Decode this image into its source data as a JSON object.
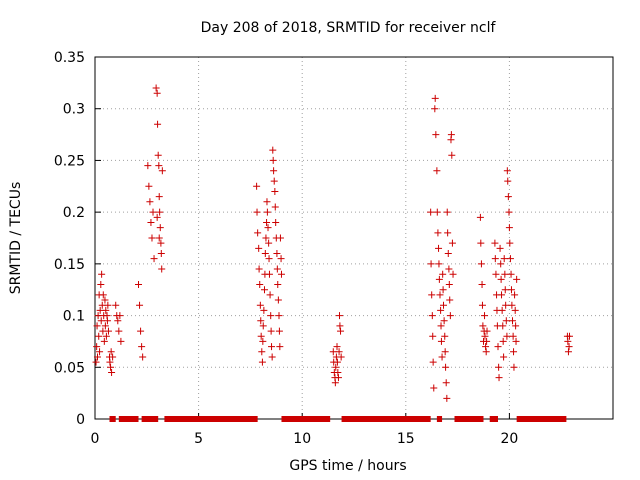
{
  "chart_data": {
    "type": "scatter",
    "title": "Day 208 of 2018, SRMTID for receiver nclf",
    "xlabel": "GPS time / hours",
    "ylabel": "SRMTID / TECUs",
    "xlim": [
      0,
      25
    ],
    "ylim": [
      0,
      0.35
    ],
    "xticks": [
      0,
      5,
      10,
      15,
      20
    ],
    "yticks": [
      0,
      0.05,
      0.1,
      0.15,
      0.2,
      0.25,
      0.3,
      0.35
    ],
    "xtick_labels": [
      "0",
      "5",
      "10",
      "15",
      "20"
    ],
    "ytick_labels": [
      "0",
      "0.05",
      "0.1",
      "0.15",
      "0.2",
      "0.25",
      "0.3",
      "0.35"
    ],
    "grid": true,
    "marker": "+",
    "marker_color": "#cc0000",
    "grid_color": "#a0a0a0",
    "series": [
      {
        "name": "SRMTID",
        "points": [
          [
            0.05,
            0.055
          ],
          [
            0.08,
            0.07
          ],
          [
            0.1,
            0.09
          ],
          [
            0.12,
            0.06
          ],
          [
            0.15,
            0.1
          ],
          [
            0.18,
            0.08
          ],
          [
            0.2,
            0.12
          ],
          [
            0.22,
            0.065
          ],
          [
            0.25,
            0.105
          ],
          [
            0.28,
            0.13
          ],
          [
            0.3,
            0.095
          ],
          [
            0.32,
            0.14
          ],
          [
            0.35,
            0.11
          ],
          [
            0.38,
            0.085
          ],
          [
            0.4,
            0.12
          ],
          [
            0.42,
            0.1
          ],
          [
            0.45,
            0.075
          ],
          [
            0.48,
            0.115
          ],
          [
            0.5,
            0.09
          ],
          [
            0.52,
            0.105
          ],
          [
            0.55,
            0.08
          ],
          [
            0.58,
            0.1
          ],
          [
            0.6,
            0.095
          ],
          [
            0.62,
            0.11
          ],
          [
            0.65,
            0.085
          ],
          [
            0.7,
            0.06
          ],
          [
            0.72,
            0.055
          ],
          [
            0.75,
            0.05
          ],
          [
            0.78,
            0.065
          ],
          [
            0.8,
            0.045
          ],
          [
            0.85,
            0.06
          ],
          [
            1.0,
            0.11
          ],
          [
            1.05,
            0.1
          ],
          [
            1.1,
            0.095
          ],
          [
            1.15,
            0.085
          ],
          [
            1.2,
            0.1
          ],
          [
            1.25,
            0.075
          ],
          [
            2.1,
            0.13
          ],
          [
            2.15,
            0.11
          ],
          [
            2.2,
            0.085
          ],
          [
            2.25,
            0.07
          ],
          [
            2.3,
            0.06
          ],
          [
            2.55,
            0.245
          ],
          [
            2.6,
            0.225
          ],
          [
            2.65,
            0.21
          ],
          [
            2.7,
            0.19
          ],
          [
            2.75,
            0.175
          ],
          [
            2.8,
            0.2
          ],
          [
            2.85,
            0.155
          ],
          [
            2.95,
            0.32
          ],
          [
            3.0,
            0.315
          ],
          [
            3.02,
            0.285
          ],
          [
            3.05,
            0.255
          ],
          [
            3.08,
            0.245
          ],
          [
            3.1,
            0.215
          ],
          [
            3.12,
            0.2
          ],
          [
            3.15,
            0.185
          ],
          [
            3.18,
            0.17
          ],
          [
            3.2,
            0.16
          ],
          [
            3.22,
            0.145
          ],
          [
            3.25,
            0.24
          ],
          [
            3.0,
            0.195
          ],
          [
            3.1,
            0.175
          ],
          [
            7.8,
            0.225
          ],
          [
            7.82,
            0.2
          ],
          [
            7.85,
            0.18
          ],
          [
            7.9,
            0.165
          ],
          [
            7.92,
            0.145
          ],
          [
            7.95,
            0.13
          ],
          [
            7.98,
            0.11
          ],
          [
            8.0,
            0.095
          ],
          [
            8.02,
            0.08
          ],
          [
            8.05,
            0.065
          ],
          [
            8.08,
            0.055
          ],
          [
            8.1,
            0.075
          ],
          [
            8.12,
            0.09
          ],
          [
            8.15,
            0.105
          ],
          [
            8.18,
            0.125
          ],
          [
            8.2,
            0.14
          ],
          [
            8.22,
            0.16
          ],
          [
            8.25,
            0.175
          ],
          [
            8.28,
            0.19
          ],
          [
            8.3,
            0.21
          ],
          [
            8.32,
            0.2
          ],
          [
            8.35,
            0.185
          ],
          [
            8.38,
            0.17
          ],
          [
            8.4,
            0.155
          ],
          [
            8.42,
            0.14
          ],
          [
            8.45,
            0.12
          ],
          [
            8.48,
            0.1
          ],
          [
            8.5,
            0.085
          ],
          [
            8.52,
            0.07
          ],
          [
            8.55,
            0.06
          ],
          [
            8.58,
            0.26
          ],
          [
            8.6,
            0.25
          ],
          [
            8.62,
            0.24
          ],
          [
            8.65,
            0.23
          ],
          [
            8.68,
            0.22
          ],
          [
            8.7,
            0.205
          ],
          [
            8.72,
            0.19
          ],
          [
            8.75,
            0.175
          ],
          [
            8.78,
            0.16
          ],
          [
            8.8,
            0.145
          ],
          [
            8.82,
            0.13
          ],
          [
            8.85,
            0.115
          ],
          [
            8.88,
            0.1
          ],
          [
            8.9,
            0.085
          ],
          [
            8.92,
            0.07
          ],
          [
            8.95,
            0.175
          ],
          [
            8.98,
            0.155
          ],
          [
            9.0,
            0.14
          ],
          [
            11.5,
            0.065
          ],
          [
            11.52,
            0.055
          ],
          [
            11.55,
            0.045
          ],
          [
            11.58,
            0.04
          ],
          [
            11.6,
            0.035
          ],
          [
            11.62,
            0.05
          ],
          [
            11.65,
            0.06
          ],
          [
            11.68,
            0.07
          ],
          [
            11.7,
            0.055
          ],
          [
            11.72,
            0.045
          ],
          [
            11.75,
            0.04
          ],
          [
            11.78,
            0.065
          ],
          [
            11.8,
            0.1
          ],
          [
            11.82,
            0.09
          ],
          [
            11.85,
            0.085
          ],
          [
            11.88,
            0.06
          ],
          [
            16.2,
            0.2
          ],
          [
            16.22,
            0.15
          ],
          [
            16.25,
            0.12
          ],
          [
            16.28,
            0.1
          ],
          [
            16.3,
            0.08
          ],
          [
            16.32,
            0.055
          ],
          [
            16.35,
            0.03
          ],
          [
            16.4,
            0.3
          ],
          [
            16.42,
            0.31
          ],
          [
            16.45,
            0.275
          ],
          [
            16.5,
            0.24
          ],
          [
            16.52,
            0.2
          ],
          [
            16.55,
            0.18
          ],
          [
            16.58,
            0.165
          ],
          [
            16.6,
            0.15
          ],
          [
            16.62,
            0.135
          ],
          [
            16.65,
            0.12
          ],
          [
            16.68,
            0.105
          ],
          [
            16.7,
            0.09
          ],
          [
            16.72,
            0.075
          ],
          [
            16.75,
            0.06
          ],
          [
            16.78,
            0.14
          ],
          [
            16.8,
            0.125
          ],
          [
            16.82,
            0.11
          ],
          [
            16.85,
            0.095
          ],
          [
            16.88,
            0.08
          ],
          [
            16.9,
            0.065
          ],
          [
            16.92,
            0.05
          ],
          [
            16.95,
            0.035
          ],
          [
            16.98,
            0.02
          ],
          [
            17.0,
            0.2
          ],
          [
            17.02,
            0.18
          ],
          [
            17.05,
            0.16
          ],
          [
            17.08,
            0.145
          ],
          [
            17.1,
            0.13
          ],
          [
            17.12,
            0.115
          ],
          [
            17.15,
            0.1
          ],
          [
            17.18,
            0.27
          ],
          [
            17.2,
            0.275
          ],
          [
            17.22,
            0.255
          ],
          [
            17.25,
            0.17
          ],
          [
            17.28,
            0.14
          ],
          [
            18.6,
            0.195
          ],
          [
            18.62,
            0.17
          ],
          [
            18.65,
            0.15
          ],
          [
            18.68,
            0.13
          ],
          [
            18.7,
            0.11
          ],
          [
            18.72,
            0.09
          ],
          [
            18.75,
            0.075
          ],
          [
            18.78,
            0.085
          ],
          [
            18.8,
            0.1
          ],
          [
            18.82,
            0.08
          ],
          [
            18.85,
            0.07
          ],
          [
            18.88,
            0.065
          ],
          [
            18.9,
            0.075
          ],
          [
            18.92,
            0.085
          ],
          [
            19.3,
            0.17
          ],
          [
            19.32,
            0.155
          ],
          [
            19.35,
            0.14
          ],
          [
            19.38,
            0.12
          ],
          [
            19.4,
            0.105
          ],
          [
            19.42,
            0.09
          ],
          [
            19.45,
            0.07
          ],
          [
            19.48,
            0.05
          ],
          [
            19.5,
            0.04
          ],
          [
            19.55,
            0.165
          ],
          [
            19.58,
            0.15
          ],
          [
            19.6,
            0.135
          ],
          [
            19.62,
            0.12
          ],
          [
            19.65,
            0.105
          ],
          [
            19.68,
            0.09
          ],
          [
            19.7,
            0.075
          ],
          [
            19.72,
            0.06
          ],
          [
            19.75,
            0.155
          ],
          [
            19.78,
            0.14
          ],
          [
            19.8,
            0.125
          ],
          [
            19.82,
            0.11
          ],
          [
            19.85,
            0.095
          ],
          [
            19.88,
            0.08
          ],
          [
            19.9,
            0.24
          ],
          [
            19.92,
            0.23
          ],
          [
            19.95,
            0.215
          ],
          [
            19.98,
            0.2
          ],
          [
            20.0,
            0.185
          ],
          [
            20.02,
            0.17
          ],
          [
            20.05,
            0.155
          ],
          [
            20.08,
            0.14
          ],
          [
            20.1,
            0.125
          ],
          [
            20.12,
            0.11
          ],
          [
            20.15,
            0.095
          ],
          [
            20.18,
            0.08
          ],
          [
            20.2,
            0.065
          ],
          [
            20.22,
            0.05
          ],
          [
            20.25,
            0.12
          ],
          [
            20.28,
            0.105
          ],
          [
            20.3,
            0.09
          ],
          [
            20.32,
            0.075
          ],
          [
            20.35,
            0.135
          ],
          [
            22.8,
            0.08
          ],
          [
            22.82,
            0.075
          ],
          [
            22.85,
            0.065
          ],
          [
            22.88,
            0.07
          ],
          [
            22.9,
            0.08
          ]
        ]
      }
    ],
    "zero_segments": [
      [
        0.7,
        1.0
      ],
      [
        1.15,
        2.1
      ],
      [
        2.25,
        3.05
      ],
      [
        3.35,
        7.85
      ],
      [
        9.0,
        11.35
      ],
      [
        11.9,
        16.2
      ],
      [
        16.5,
        16.75
      ],
      [
        17.35,
        18.75
      ],
      [
        19.05,
        19.45
      ],
      [
        20.35,
        22.75
      ]
    ]
  }
}
